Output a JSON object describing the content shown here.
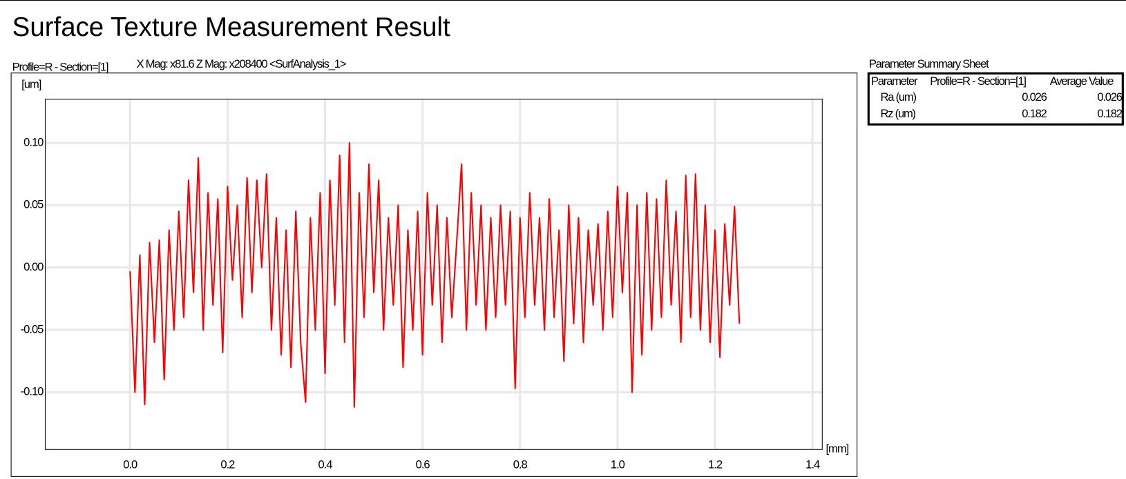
{
  "header": {
    "title": "Surface Texture Measurement Result"
  },
  "chart_data": {
    "type": "line",
    "title": "Profile=R - Section=[1]",
    "subtitle": "X Mag: x81.6 Z Mag: x208400 <SurfAnalysis_1>",
    "y_label": "[um]",
    "x_label": "[mm]",
    "color": "#ff0000",
    "grid": true,
    "xlim": [
      -0.174,
      1.42
    ],
    "ylim": [
      -0.146,
      0.135
    ],
    "xticks": [
      {
        "value": 0,
        "label": "0.0"
      },
      0.2,
      0.4,
      0.6,
      0.8,
      {
        "value": 1,
        "label": "1.0"
      },
      1.2,
      1.4
    ],
    "yticks": [
      {
        "value": 0.1,
        "label": "0.10"
      },
      0.05,
      {
        "value": 0,
        "label": "0.00"
      },
      -0.05,
      {
        "value": -0.1,
        "label": "-0.10"
      }
    ],
    "x": [
      0.0,
      0.01,
      0.02,
      0.03,
      0.04,
      0.05,
      0.06,
      0.07,
      0.08,
      0.09,
      0.1,
      0.11,
      0.12,
      0.13,
      0.14,
      0.15,
      0.16,
      0.17,
      0.18,
      0.19,
      0.2,
      0.21,
      0.22,
      0.23,
      0.24,
      0.25,
      0.26,
      0.27,
      0.28,
      0.29,
      0.3,
      0.31,
      0.32,
      0.33,
      0.34,
      0.35,
      0.36,
      0.37,
      0.38,
      0.39,
      0.4,
      0.41,
      0.42,
      0.43,
      0.44,
      0.45,
      0.46,
      0.47,
      0.48,
      0.49,
      0.5,
      0.51,
      0.52,
      0.53,
      0.54,
      0.55,
      0.56,
      0.57,
      0.58,
      0.59,
      0.6,
      0.61,
      0.62,
      0.63,
      0.64,
      0.65,
      0.66,
      0.67,
      0.68,
      0.69,
      0.7,
      0.71,
      0.72,
      0.73,
      0.74,
      0.75,
      0.76,
      0.77,
      0.78,
      0.79,
      0.8,
      0.81,
      0.82,
      0.83,
      0.84,
      0.85,
      0.86,
      0.87,
      0.88,
      0.89,
      0.9,
      0.91,
      0.92,
      0.93,
      0.94,
      0.95,
      0.96,
      0.97,
      0.98,
      0.99,
      1.0,
      1.01,
      1.02,
      1.03,
      1.04,
      1.05,
      1.06,
      1.07,
      1.08,
      1.09,
      1.1,
      1.11,
      1.12,
      1.13,
      1.14,
      1.15,
      1.16,
      1.17,
      1.18,
      1.19,
      1.2,
      1.21,
      1.22,
      1.23,
      1.24,
      1.25
    ],
    "values": [
      -0.003,
      -0.1,
      0.01,
      -0.11,
      0.02,
      -0.06,
      0.022,
      -0.09,
      0.03,
      -0.05,
      0.045,
      -0.04,
      0.07,
      -0.02,
      0.088,
      -0.05,
      0.06,
      -0.03,
      0.055,
      -0.068,
      0.065,
      -0.01,
      0.05,
      -0.04,
      0.072,
      -0.02,
      0.07,
      0.0,
      0.075,
      -0.05,
      0.04,
      -0.07,
      0.03,
      -0.08,
      0.045,
      -0.06,
      -0.108,
      0.04,
      -0.05,
      0.06,
      -0.085,
      0.07,
      -0.03,
      0.09,
      -0.06,
      0.1,
      -0.112,
      0.06,
      -0.04,
      0.083,
      -0.02,
      0.07,
      -0.05,
      0.04,
      -0.03,
      0.05,
      -0.08,
      0.03,
      -0.05,
      0.045,
      -0.07,
      0.06,
      -0.03,
      0.05,
      -0.06,
      0.04,
      -0.04,
      0.02,
      0.083,
      -0.05,
      0.06,
      -0.03,
      0.05,
      -0.05,
      0.04,
      -0.04,
      0.05,
      -0.03,
      0.045,
      -0.097,
      0.04,
      -0.04,
      0.06,
      -0.03,
      0.04,
      -0.05,
      0.055,
      -0.04,
      0.03,
      -0.075,
      0.05,
      -0.045,
      0.04,
      -0.06,
      0.03,
      -0.03,
      0.035,
      -0.05,
      0.045,
      -0.04,
      0.065,
      -0.02,
      0.06,
      -0.1,
      0.05,
      -0.07,
      0.06,
      -0.05,
      0.055,
      -0.04,
      0.07,
      -0.03,
      0.045,
      -0.06,
      0.074,
      -0.04,
      0.075,
      -0.05,
      0.05,
      -0.06,
      0.03,
      -0.072,
      0.035,
      -0.03,
      0.049,
      -0.045
    ]
  },
  "summary": {
    "title": "Parameter Summary Sheet",
    "columns": [
      "Parameter",
      "Profile=R - Section=[1]",
      "Average Value"
    ],
    "rows": [
      [
        "Ra (um)",
        0.026,
        0.026
      ],
      [
        "Rz (um)",
        0.182,
        0.182
      ]
    ]
  }
}
